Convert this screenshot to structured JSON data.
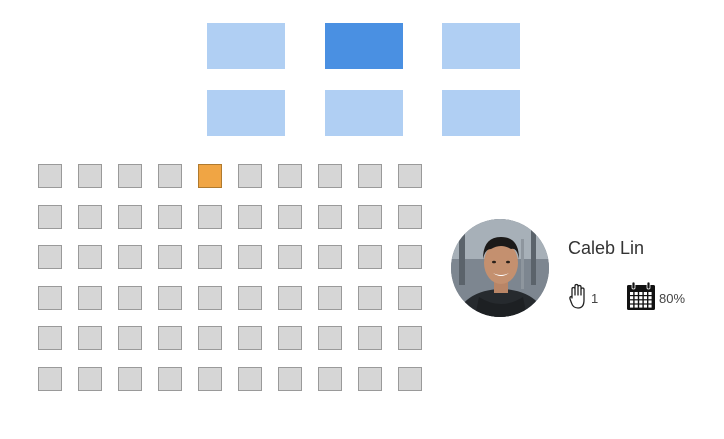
{
  "blocks": {
    "rows": [
      [
        {
          "active": false
        },
        {
          "active": true
        },
        {
          "active": false
        }
      ],
      [
        {
          "active": false
        },
        {
          "active": false
        },
        {
          "active": false
        }
      ]
    ]
  },
  "seats": {
    "rows": 6,
    "cols": 10,
    "selected": [
      {
        "row": 0,
        "col": 4
      }
    ]
  },
  "profile": {
    "name": "Caleb Lin",
    "raised_hand_icon": "raised-hand-icon",
    "raised_hand_count": "1",
    "calendar_icon": "calendar-icon",
    "attendance": "80%"
  },
  "colors": {
    "block": "#b0cff3",
    "block_active": "#4a90e2",
    "seat": "#d6d6d6",
    "seat_active": "#f0a544"
  }
}
